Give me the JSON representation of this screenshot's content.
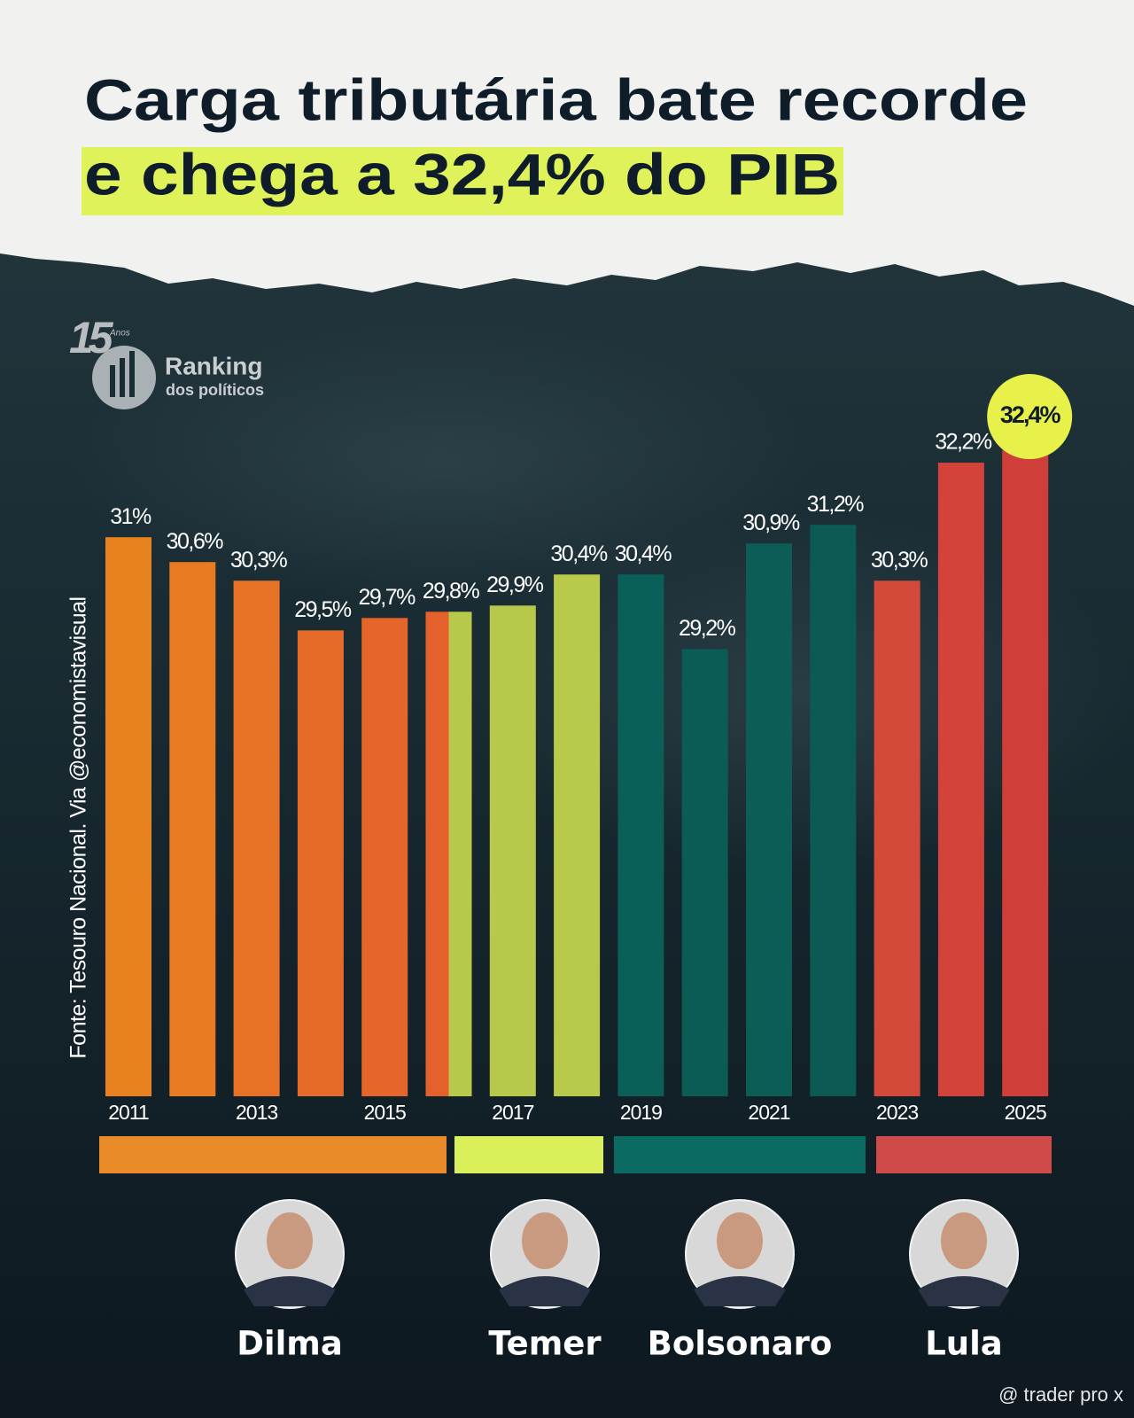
{
  "chart_data": {
    "type": "bar",
    "title_lines": [
      "Carga tributária bate recorde",
      "e chega a 32,4% do PIB"
    ],
    "categories": [
      "2011",
      null,
      "2013",
      null,
      "2015",
      null,
      "2017",
      null,
      "2019",
      null,
      "2021",
      null,
      "2023",
      null,
      "2025"
    ],
    "values": [
      31,
      30.6,
      30.3,
      29.5,
      29.7,
      29.8,
      29.9,
      30.4,
      30.4,
      29.2,
      30.9,
      31.2,
      30.3,
      32.2,
      32.4
    ],
    "value_labels": [
      "31%",
      "30,6%",
      "30,3%",
      "29,5%",
      "29,7%",
      "29,8%",
      "29,9%",
      "30,4%",
      "30,4%",
      "29,2%",
      "30,9%",
      "31,2%",
      "30,3%",
      "32,2%",
      "32,4%"
    ],
    "colors": [
      "#e8821e",
      "#e87a22",
      "#e77226",
      "#e66a29",
      "#e5652b",
      [
        "#e4612c",
        "#b8c84a"
      ],
      "#b8c84a",
      "#b9c94a",
      "#0a5f58",
      "#0a5c55",
      "#0b5d56",
      "#0b5a53",
      "#d44a3a",
      "#d3433a",
      "#cf3e38"
    ],
    "highlight_color": "#e8f04a",
    "ylim": [
      22,
      33
    ],
    "periods": [
      {
        "name": "Dilma",
        "color": "#ea8b2a"
      },
      {
        "name": "Temer",
        "color": "#dbef5a"
      },
      {
        "name": "Bolsonaro",
        "color": "#0b6a62"
      },
      {
        "name": "Lula",
        "color": "#cf4a48"
      }
    ],
    "source": "Fonte: Tesouro Nacional. Via @economistavisual",
    "logo": {
      "number": "15",
      "small": "Anos",
      "name": "Ranking",
      "tagline": "dos políticos"
    },
    "watermark": "@ trader pro x"
  }
}
